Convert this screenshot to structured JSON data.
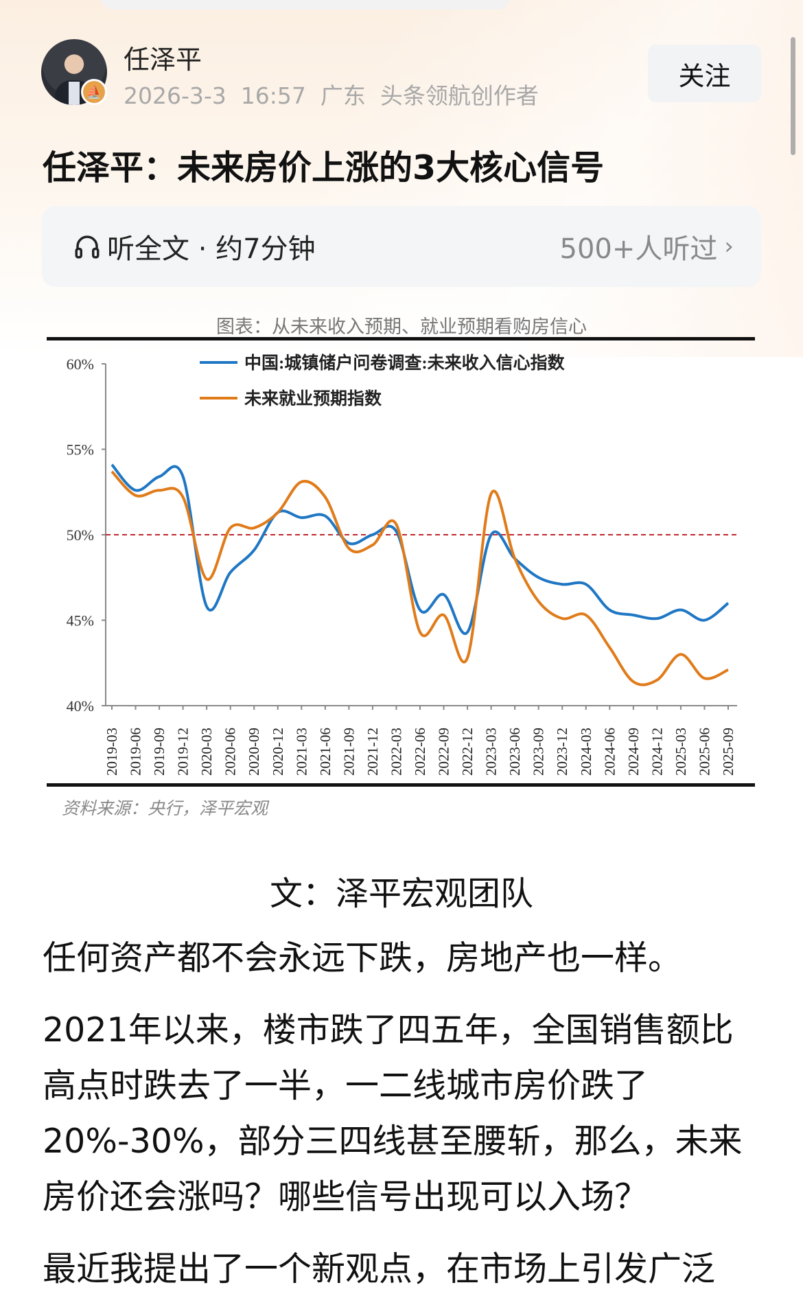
{
  "header": {
    "author_name": "任泽平",
    "meta": "2026-3-3  16:57  广东  头条领航创作者",
    "follow_label": "关注"
  },
  "article": {
    "title": "任泽平：未来房价上涨的3大核心信号",
    "audio": {
      "label": "听全文 · 约7分钟",
      "listeners": "500+人听过"
    },
    "byline": "文：泽平宏观团队",
    "paragraphs": [
      {
        "lines": [
          "任何资产都不会永远下跌，房地产也一样。"
        ]
      },
      {
        "lines": [
          "2021年以来，楼市跌了四五年，全国销售额比",
          "高点时跌去了一半，一二线城市房价跌了",
          "20%-30%，部分三四线甚至腰斩，那么，未来",
          "房价还会涨吗？哪些信号出现可以入场？"
        ]
      },
      {
        "lines": [
          "最近我提出了一个新观点，在市场上引发广泛"
        ]
      }
    ]
  },
  "chart_data": {
    "type": "line",
    "title": "图表：从未来收入预期、就业预期看购房信心",
    "source": "资料来源：央行，泽平宏观",
    "categories": [
      "2019-03",
      "2019-06",
      "2019-09",
      "2019-12",
      "2020-03",
      "2020-06",
      "2020-09",
      "2020-12",
      "2021-03",
      "2021-06",
      "2021-09",
      "2021-12",
      "2022-03",
      "2022-06",
      "2022-09",
      "2022-12",
      "2023-03",
      "2023-06",
      "2023-09",
      "2023-12",
      "2024-03",
      "2024-06",
      "2024-09",
      "2024-12",
      "2025-03",
      "2025-06",
      "2025-09"
    ],
    "yticks": [
      "40%",
      "45%",
      "50%",
      "55%",
      "60%"
    ],
    "ylim": [
      40,
      60
    ],
    "reference_line": {
      "value": 50,
      "color": "#c0262d",
      "style": "dashed"
    },
    "legend_placement": "top-left",
    "series": [
      {
        "name": "中国:城镇储户问卷调查:未来收入信心指数",
        "color": "#1f77c4",
        "values": [
          54.1,
          52.6,
          53.4,
          53.4,
          45.8,
          47.8,
          49.1,
          51.3,
          51.0,
          51.1,
          49.5,
          50.0,
          50.2,
          45.6,
          46.5,
          44.3,
          50.0,
          48.6,
          47.5,
          47.1,
          47.1,
          45.6,
          45.3,
          45.1,
          45.6,
          45.0,
          46.0
        ]
      },
      {
        "name": "未来就业预期指数",
        "color": "#e07b1a",
        "values": [
          53.7,
          52.3,
          52.6,
          52.2,
          47.4,
          50.4,
          50.4,
          51.3,
          53.1,
          52.2,
          49.2,
          49.4,
          50.6,
          44.3,
          45.3,
          42.8,
          52.4,
          48.6,
          46.1,
          45.1,
          45.3,
          43.4,
          41.4,
          41.5,
          43.0,
          41.6,
          42.1
        ]
      }
    ]
  }
}
